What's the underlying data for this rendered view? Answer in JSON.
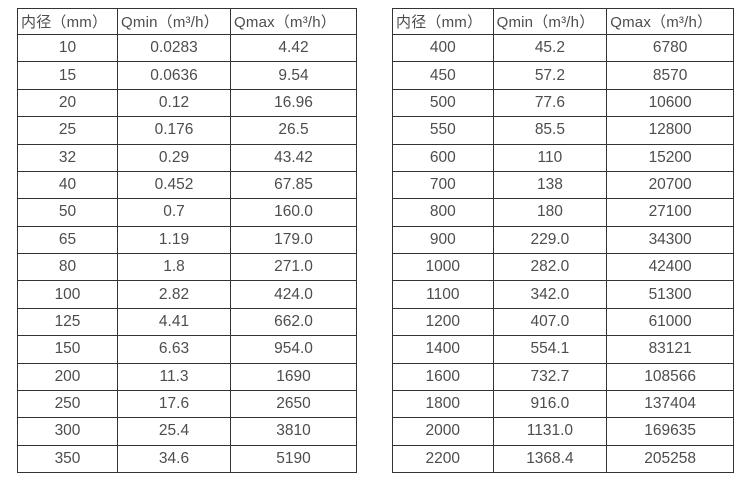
{
  "colors": {
    "background": "#ffffff",
    "border": "#333333",
    "text": "#4d4d4d"
  },
  "chart_data": [
    {
      "type": "table",
      "title": "",
      "headers": [
        "内径（mm）",
        "Qmin（m³/h）",
        "Qmax（m³/h）"
      ],
      "rows": [
        [
          "10",
          "0.0283",
          "4.42"
        ],
        [
          "15",
          "0.0636",
          "9.54"
        ],
        [
          "20",
          "0.12",
          "16.96"
        ],
        [
          "25",
          "0.176",
          "26.5"
        ],
        [
          "32",
          "0.29",
          "43.42"
        ],
        [
          "40",
          "0.452",
          "67.85"
        ],
        [
          "50",
          "0.7",
          "160.0"
        ],
        [
          "65",
          "1.19",
          "179.0"
        ],
        [
          "80",
          "1.8",
          "271.0"
        ],
        [
          "100",
          "2.82",
          "424.0"
        ],
        [
          "125",
          "4.41",
          "662.0"
        ],
        [
          "150",
          "6.63",
          "954.0"
        ],
        [
          "200",
          "11.3",
          "1690"
        ],
        [
          "250",
          "17.6",
          "2650"
        ],
        [
          "300",
          "25.4",
          "3810"
        ],
        [
          "350",
          "34.6",
          "5190"
        ]
      ]
    },
    {
      "type": "table",
      "title": "",
      "headers": [
        "内径（mm）",
        "Qmin（m³/h）",
        "Qmax（m³/h）"
      ],
      "rows": [
        [
          "400",
          "45.2",
          "6780"
        ],
        [
          "450",
          "57.2",
          "8570"
        ],
        [
          "500",
          "77.6",
          "10600"
        ],
        [
          "550",
          "85.5",
          "12800"
        ],
        [
          "600",
          "110",
          "15200"
        ],
        [
          "700",
          "138",
          "20700"
        ],
        [
          "800",
          "180",
          "27100"
        ],
        [
          "900",
          "229.0",
          "34300"
        ],
        [
          "1000",
          "282.0",
          "42400"
        ],
        [
          "1100",
          "342.0",
          "51300"
        ],
        [
          "1200",
          "407.0",
          "61000"
        ],
        [
          "1400",
          "554.1",
          "83121"
        ],
        [
          "1600",
          "732.7",
          "108566"
        ],
        [
          "1800",
          "916.0",
          "137404"
        ],
        [
          "2000",
          "1131.0",
          "169635"
        ],
        [
          "2200",
          "1368.4",
          "205258"
        ]
      ]
    }
  ]
}
